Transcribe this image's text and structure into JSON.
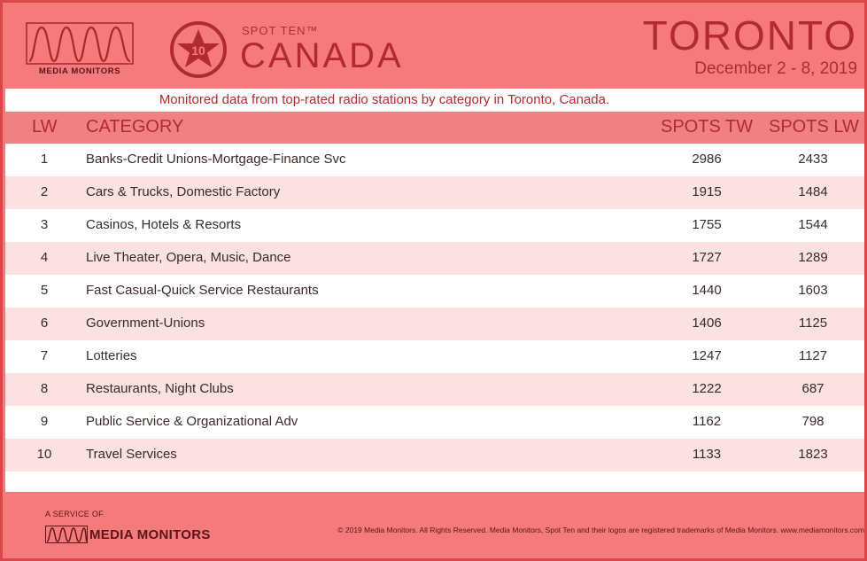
{
  "header": {
    "logo_text": "MEDIA MONITORS",
    "badge_number": "10",
    "spot_ten": "SPOT TEN™",
    "country": "CANADA",
    "city": "TORONTO",
    "date_range": "December 2 - 8, 2019"
  },
  "subtitle": "Monitored data from top-rated radio stations by category in Toronto, Canada.",
  "table": {
    "columns": [
      "LW",
      "CATEGORY",
      "SPOTS TW",
      "SPOTS LW"
    ],
    "rows": [
      {
        "lw": "1",
        "category": "Banks-Credit Unions-Mortgage-Finance Svc",
        "spots_tw": "2986",
        "spots_lw": "2433"
      },
      {
        "lw": "2",
        "category": "Cars & Trucks, Domestic Factory",
        "spots_tw": "1915",
        "spots_lw": "1484"
      },
      {
        "lw": "3",
        "category": "Casinos, Hotels & Resorts",
        "spots_tw": "1755",
        "spots_lw": "1544"
      },
      {
        "lw": "4",
        "category": "Live Theater, Opera, Music, Dance",
        "spots_tw": "1727",
        "spots_lw": "1289"
      },
      {
        "lw": "5",
        "category": "Fast Casual-Quick Service Restaurants",
        "spots_tw": "1440",
        "spots_lw": "1603"
      },
      {
        "lw": "6",
        "category": "Government-Unions",
        "spots_tw": "1406",
        "spots_lw": "1125"
      },
      {
        "lw": "7",
        "category": "Lotteries",
        "spots_tw": "1247",
        "spots_lw": "1127"
      },
      {
        "lw": "8",
        "category": "Restaurants, Night Clubs",
        "spots_tw": "1222",
        "spots_lw": "687"
      },
      {
        "lw": "9",
        "category": "Public Service & Organizational Adv",
        "spots_tw": "1162",
        "spots_lw": "798"
      },
      {
        "lw": "10",
        "category": "Travel Services",
        "spots_tw": "1133",
        "spots_lw": "1823"
      }
    ]
  },
  "footer": {
    "service_label": "A SERVICE OF",
    "logo_text": "MEDIA MONITORS",
    "copyright": "© 2019 Media Monitors. All Rights Reserved. Media Monitors, Spot Ten and their logos are registered trademarks of Media Monitors. www.mediamonitors.com"
  },
  "colors": {
    "accent": "#b32a2e",
    "background": "#f47a7c",
    "row_alt": "#fbe1e2"
  }
}
